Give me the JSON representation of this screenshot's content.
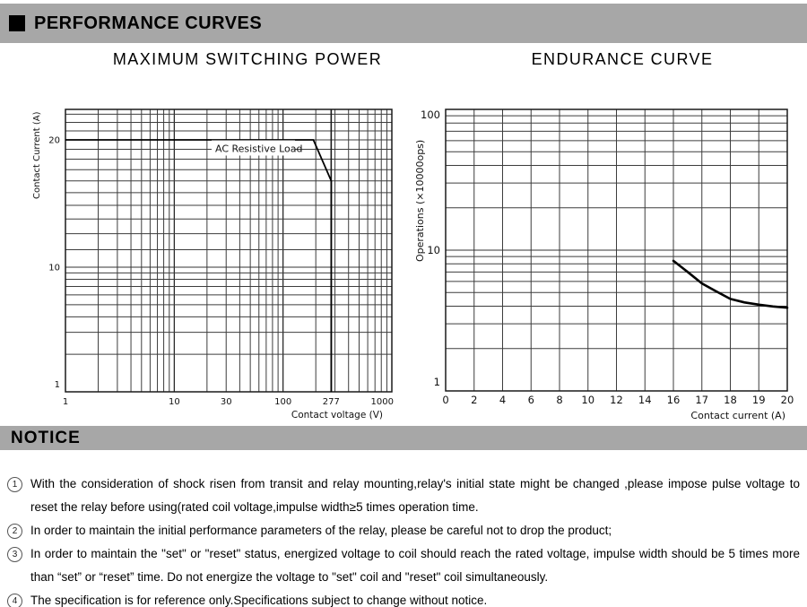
{
  "header": {
    "title": "PERFORMANCE CURVES"
  },
  "notice": {
    "title": "NOTICE",
    "notes": [
      {
        "num": "1",
        "text": "With the consideration of shock risen from transit and relay mounting,relay's initial state might be changed ,please impose pulse voltage to reset the relay before using(rated coil voltage,impulse width≥5 times operation time."
      },
      {
        "num": "2",
        "text": "In order to maintain the initial performance parameters of the relay, please be careful not to drop the product;"
      },
      {
        "num": "3",
        "text": "In order to maintain the \"set\" or \"reset\" status, energized voltage to coil should reach the rated voltage, impulse width should be 5 times more than “set” or “reset” time. Do not energize the voltage to \"set\" coil and \"reset\" coil simultaneously."
      },
      {
        "num": "4",
        "text": "The specification is for reference only.Specifications subject to change without notice."
      }
    ]
  },
  "chart_data": [
    {
      "type": "line",
      "title": "MAXIMUM SWITCHING POWER",
      "xlabel": "Contact voltage（V）",
      "ylabel": "Contact Current（A）",
      "x_scale": "log",
      "y_scale": "log",
      "x_range": [
        1,
        1000
      ],
      "y_range": [
        1,
        24
      ],
      "grid": "on",
      "annotation": "AC Resistive Load",
      "x_ticks": [
        {
          "v": 1,
          "t": "1"
        },
        {
          "v": 10,
          "t": "10"
        },
        {
          "v": 30,
          "t": "30"
        },
        {
          "v": 100,
          "t": "100"
        },
        {
          "v": 277,
          "t": "277"
        },
        {
          "v": 1000,
          "t": "1000"
        }
      ],
      "y_ticks": [
        {
          "v": 1,
          "t": "1"
        },
        {
          "v": 10,
          "t": "10"
        },
        {
          "v": 20,
          "t": "20"
        }
      ],
      "highlight_x": 277,
      "series": [
        {
          "name": "AC Resistive Load",
          "points": [
            [
              1,
              20
            ],
            [
              190,
              20
            ],
            [
              277,
              16
            ],
            [
              277,
              1
            ]
          ]
        }
      ]
    },
    {
      "type": "line",
      "title": "ENDURANCE CURVE",
      "xlabel": "Contact current（A）",
      "ylabel": "Operations（×10000ops）",
      "x_scale": "linear-segmented",
      "y_scale": "log",
      "x_range": [
        0,
        20
      ],
      "y_range": [
        1,
        100
      ],
      "grid": "on",
      "x_ticks": [
        {
          "v": 0,
          "t": "0"
        },
        {
          "v": 2,
          "t": "2"
        },
        {
          "v": 4,
          "t": "4"
        },
        {
          "v": 6,
          "t": "6"
        },
        {
          "v": 8,
          "t": "8"
        },
        {
          "v": 10,
          "t": "10"
        },
        {
          "v": 12,
          "t": "12"
        },
        {
          "v": 14,
          "t": "14"
        },
        {
          "v": 16,
          "t": "16"
        },
        {
          "v": 17,
          "t": "17"
        },
        {
          "v": 18,
          "t": "18"
        },
        {
          "v": 19,
          "t": "19"
        },
        {
          "v": 20,
          "t": "20"
        }
      ],
      "y_ticks": [
        {
          "v": 1,
          "t": "1"
        },
        {
          "v": 10,
          "t": "10"
        },
        {
          "v": 100,
          "t": "100"
        }
      ],
      "series": [
        {
          "name": "Endurance",
          "points": [
            [
              16,
              8.4
            ],
            [
              16.5,
              7.0
            ],
            [
              17,
              5.8
            ],
            [
              17.5,
              5.1
            ],
            [
              18,
              4.5
            ],
            [
              18.5,
              4.25
            ],
            [
              19,
              4.1
            ],
            [
              19.5,
              3.98
            ],
            [
              20,
              3.9
            ]
          ]
        }
      ]
    }
  ],
  "colors": {
    "bar_gray": "#a7a7a7",
    "grid_line": "#3d3d3d",
    "curve": "#000000"
  }
}
